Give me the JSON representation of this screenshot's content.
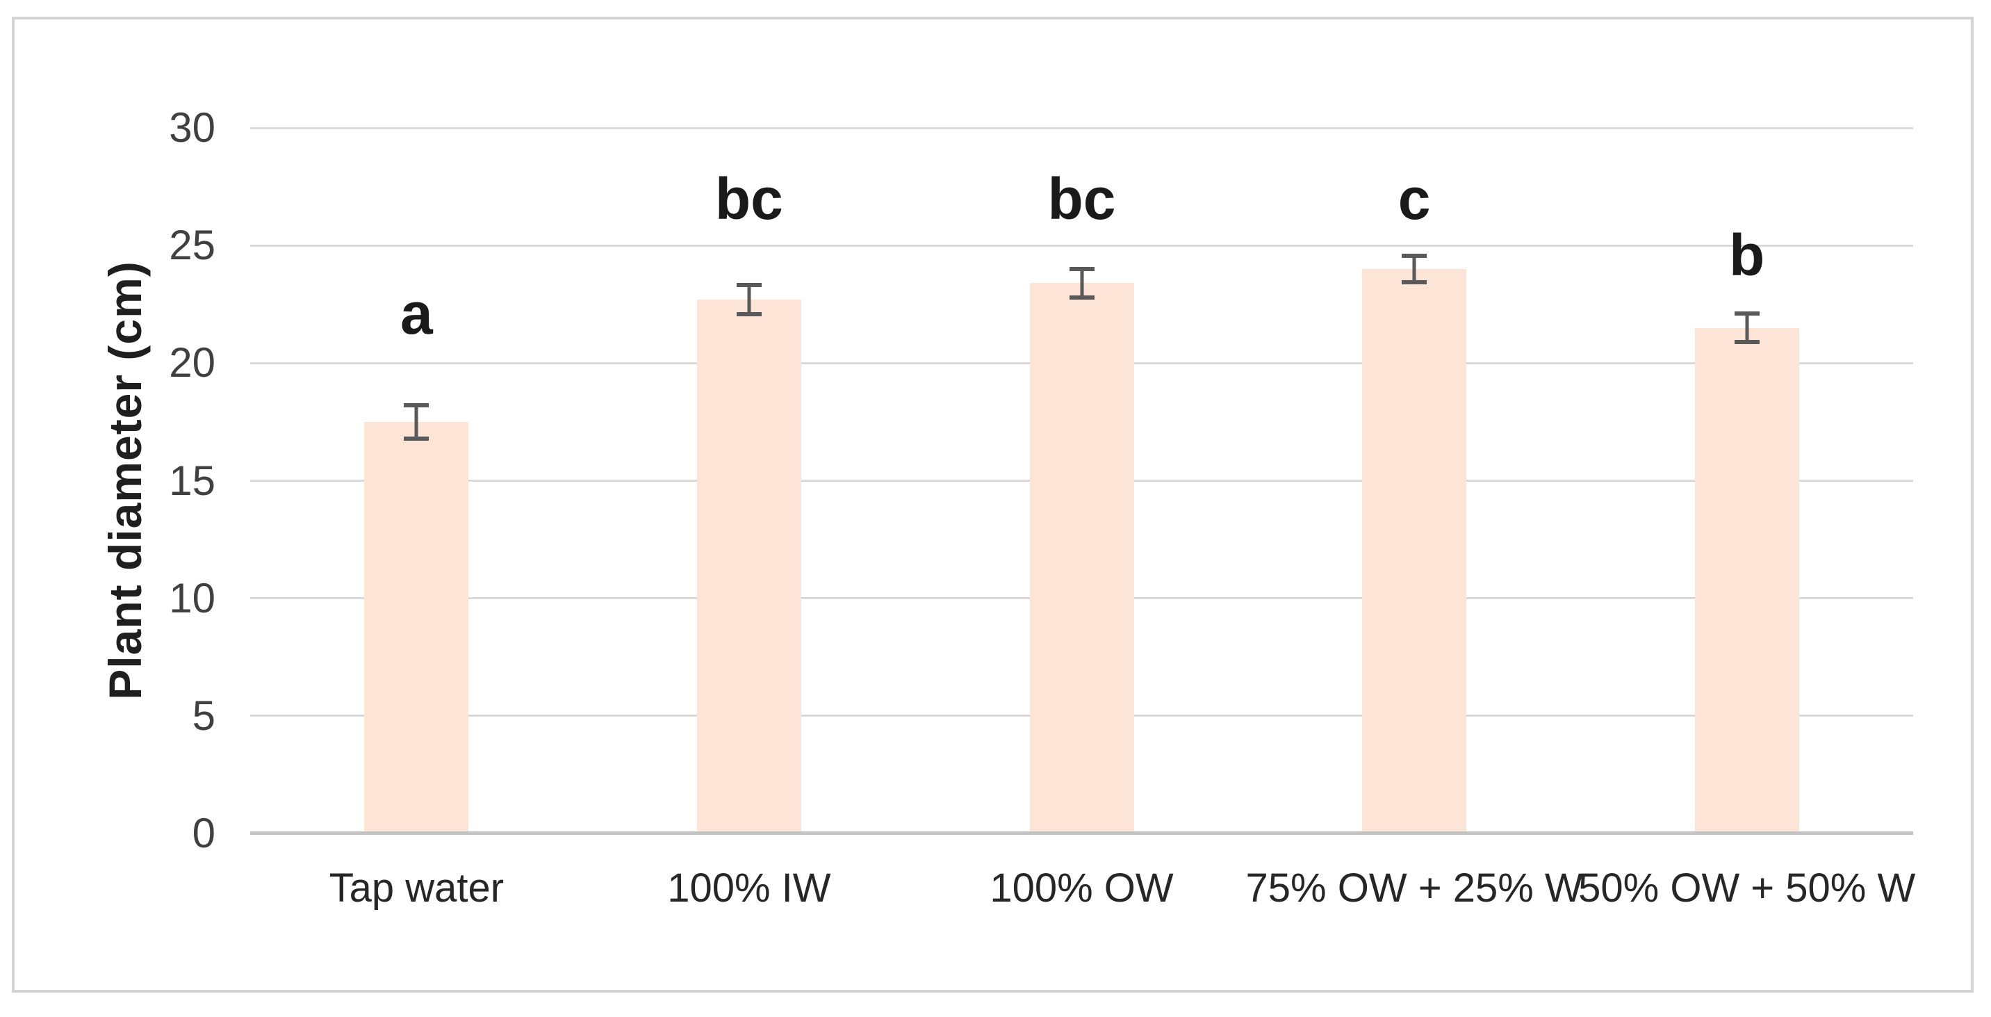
{
  "frame": {
    "border_color": "#d4d4d4",
    "background_color": "#ffffff"
  },
  "chart_data": {
    "type": "bar",
    "title": "",
    "xlabel": "",
    "ylabel": "Plant diameter (cm)",
    "ylim": [
      0,
      30
    ],
    "yticks": [
      0,
      5,
      10,
      15,
      20,
      25,
      30
    ],
    "grid": true,
    "legend": false,
    "categories": [
      "Tap water",
      "100% IW",
      "100% OW",
      "75% OW + 25% W",
      "50% OW + 50% W"
    ],
    "values": [
      17.5,
      22.7,
      23.4,
      24.0,
      21.5
    ],
    "errors": [
      0.8,
      0.7,
      0.7,
      0.65,
      0.7
    ],
    "sig_letters": [
      "a",
      "bc",
      "bc",
      "c",
      "b"
    ],
    "sig_letter_y": [
      22.1,
      27.0,
      27.0,
      27.0,
      24.6
    ],
    "bar_color": "#fce4d6",
    "error_bar_color": "#595959",
    "gridline_color": "#d9d9d9",
    "axis_line_color": "#c3c3c3"
  }
}
